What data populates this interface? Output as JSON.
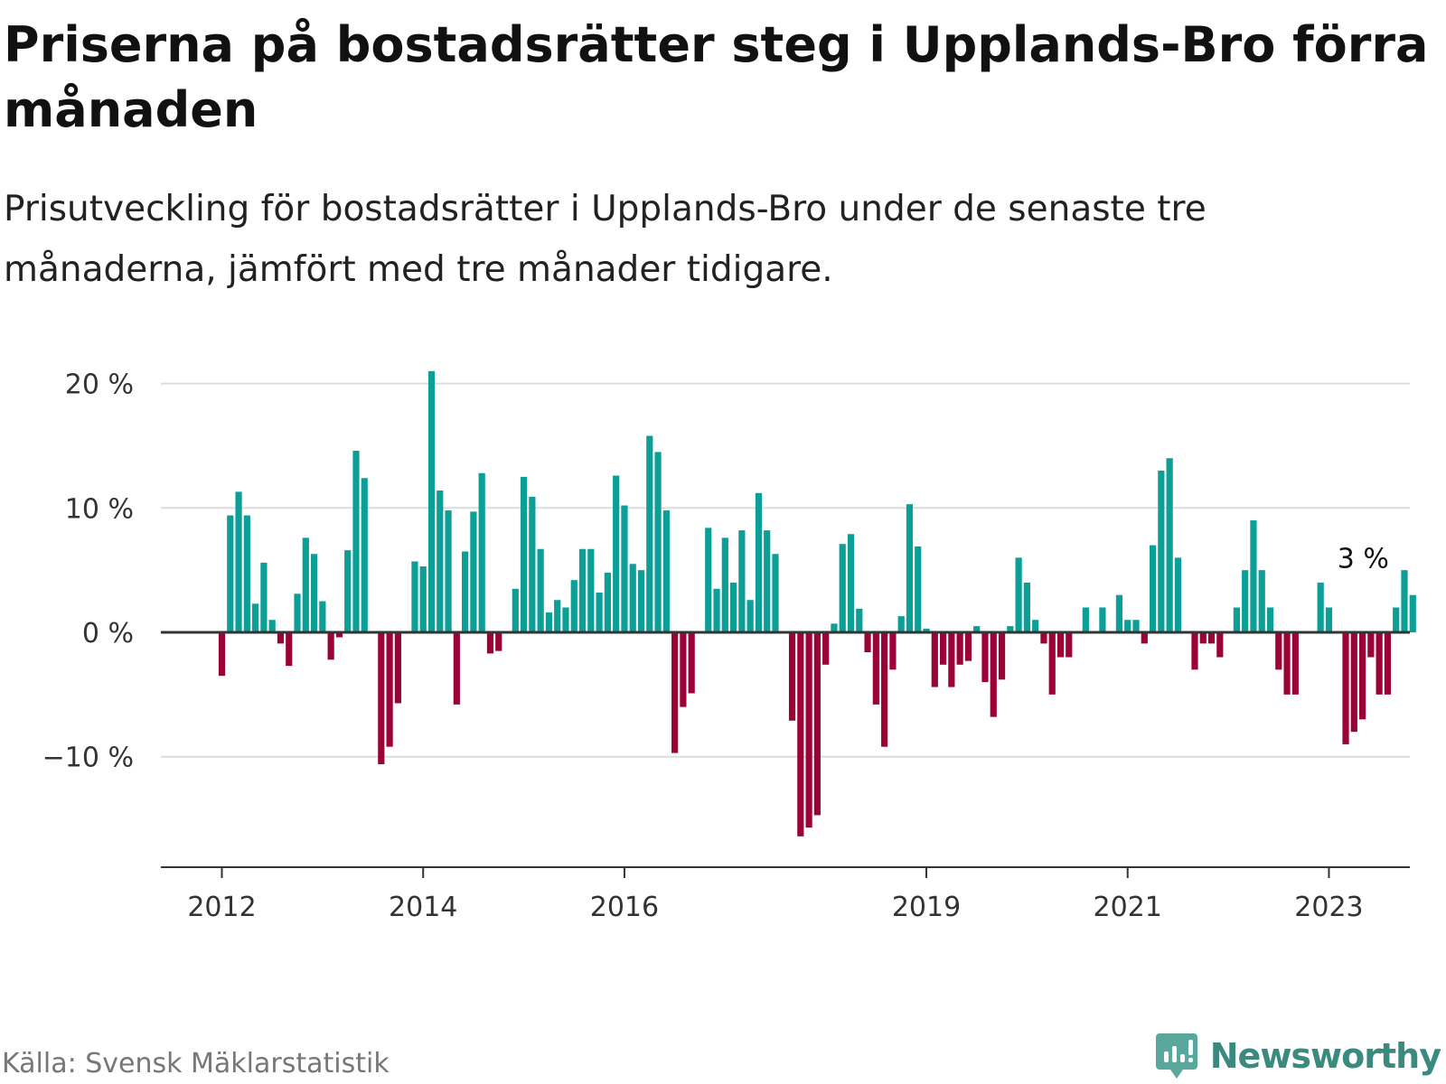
{
  "header": {
    "title": "Priserna på bostadsrätter steg i Upplands-Bro förra månaden",
    "subtitle": "Prisutveckling för bostadsrätter i Upplands-Bro under de senaste tre månaderna, jämfört med tre månader tidigare."
  },
  "footer": {
    "source": "Källa: Svensk Mäklarstatistik",
    "brand": "Newsworthy"
  },
  "colors": {
    "positive": "#0c9f98",
    "negative": "#9b0338",
    "gridline": "#dddddd",
    "zeroline": "#333333"
  },
  "chart_data": {
    "type": "bar",
    "title": "Priserna på bostadsrätter steg i Upplands-Bro förra månaden",
    "subtitle": "Prisutveckling för bostadsrätter i Upplands-Bro under de senaste tre månaderna, jämfört med tre månader tidigare.",
    "xlabel": "",
    "ylabel": "",
    "unit": "%",
    "ylim": [
      -19,
      21
    ],
    "yticks": [
      -10,
      0,
      10,
      20
    ],
    "ytick_labels": [
      "−10 %",
      "0 %",
      "10 %",
      "20 %"
    ],
    "grid": true,
    "xticks": [
      {
        "label": "2012",
        "index": 0
      },
      {
        "label": "2014",
        "index": 24
      },
      {
        "label": "2016",
        "index": 48
      },
      {
        "label": "2019",
        "index": 84
      },
      {
        "label": "2021",
        "index": 108
      },
      {
        "label": "2023",
        "index": 132
      }
    ],
    "annotation": {
      "text": "3 %",
      "index": 135
    },
    "values": [
      -3.5,
      9.4,
      11.3,
      9.4,
      2.3,
      5.6,
      1.0,
      -0.9,
      -2.7,
      3.1,
      7.6,
      6.3,
      2.5,
      -2.2,
      -0.4,
      6.6,
      14.6,
      12.4,
      null,
      -10.6,
      -9.2,
      -5.7,
      null,
      5.7,
      5.3,
      21.0,
      11.4,
      9.8,
      -5.8,
      6.5,
      9.7,
      12.8,
      -1.7,
      -1.5,
      null,
      3.5,
      12.5,
      10.9,
      6.7,
      1.6,
      2.6,
      2.0,
      4.2,
      6.7,
      6.7,
      3.2,
      4.8,
      12.6,
      10.2,
      5.5,
      5.0,
      15.8,
      14.5,
      9.8,
      -9.7,
      -6.0,
      -4.9,
      null,
      8.4,
      3.5,
      7.6,
      4.0,
      8.2,
      2.6,
      11.2,
      8.2,
      6.3,
      null,
      -7.1,
      -16.4,
      -15.7,
      -14.7,
      -2.6,
      0.7,
      7.1,
      7.9,
      1.9,
      -1.6,
      -5.8,
      -9.2,
      -3.0,
      1.3,
      10.3,
      6.9,
      0.3,
      -4.4,
      -2.6,
      -4.4,
      -2.6,
      -2.3,
      0.5,
      -4.0,
      -6.8,
      -3.8,
      0.5,
      6.0,
      4.0,
      1.0,
      -0.9,
      -5.0,
      -2.0,
      -2.0,
      null,
      2.0,
      null,
      2.0,
      null,
      3.0,
      1.0,
      1.0,
      -0.9,
      7.0,
      13.0,
      14.0,
      6.0,
      null,
      -3.0,
      -0.9,
      -0.9,
      -2.0,
      null,
      2.0,
      5.0,
      9.0,
      5.0,
      2.0,
      -3.0,
      -5.0,
      -5.0,
      null,
      null,
      4.0,
      2.0,
      null,
      -9.0,
      -8.0,
      -7.0,
      -2.0,
      -5.0,
      -5.0,
      2.0,
      5.0,
      3.0
    ]
  }
}
